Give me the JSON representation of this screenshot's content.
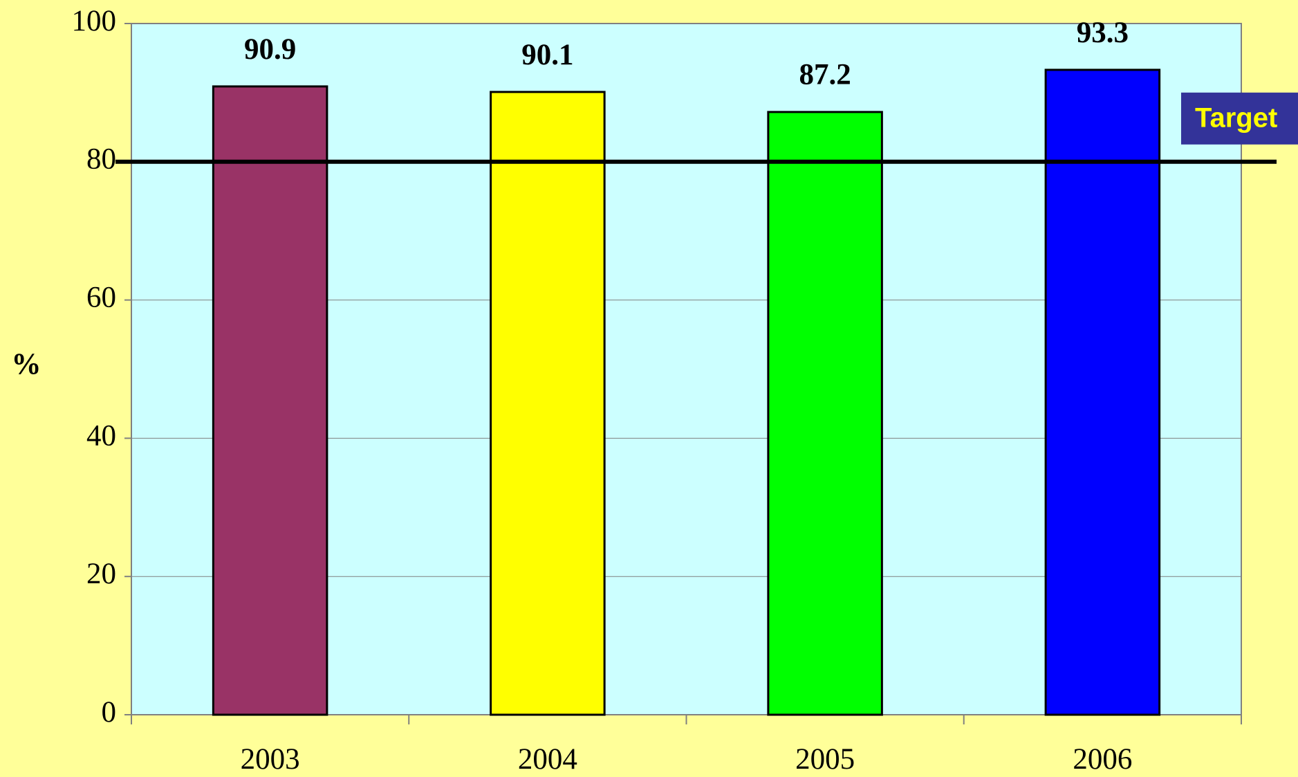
{
  "chart_data": {
    "type": "bar",
    "ylabel": "%",
    "categories": [
      "2003",
      "2004",
      "2005",
      "2006"
    ],
    "values": [
      90.9,
      90.1,
      87.2,
      93.3
    ],
    "colors": [
      "#993366",
      "#ffff00",
      "#00ff00",
      "#0000ff"
    ],
    "ylim": [
      0,
      100
    ],
    "yticks": [
      0,
      20,
      40,
      60,
      80,
      100
    ],
    "grid": true,
    "target": {
      "label": "Target",
      "value": 80
    }
  }
}
